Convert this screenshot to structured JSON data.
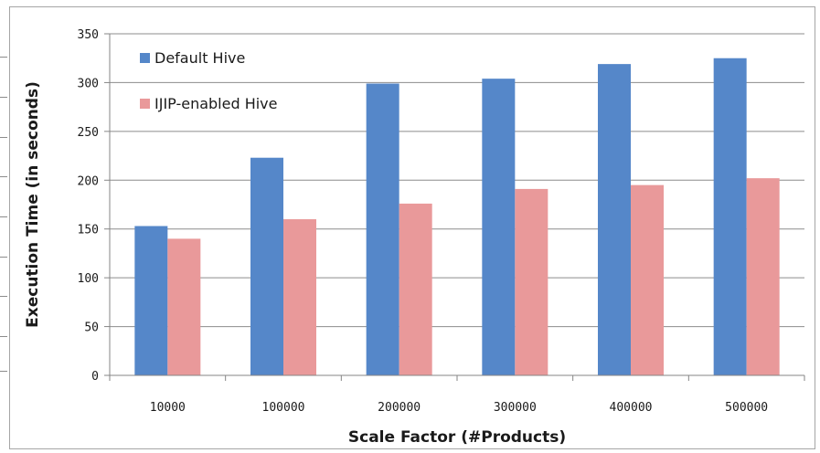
{
  "chart_data": {
    "type": "bar",
    "title": "",
    "xlabel": "Scale Factor (#Products)",
    "ylabel": "Execution Time  (in seconds)",
    "ylim": [
      0,
      350
    ],
    "yticks": [
      0,
      50,
      100,
      150,
      200,
      250,
      300,
      350
    ],
    "grid": "horizontal",
    "legend_position": "top-left",
    "categories": [
      "10000",
      "100000",
      "200000",
      "300000",
      "400000",
      "500000"
    ],
    "series": [
      {
        "name": "Default Hive",
        "color": "#5587c9",
        "values": [
          153,
          223,
          299,
          304,
          319,
          325
        ]
      },
      {
        "name": "IJIP-enabled Hive",
        "color": "#e9999a",
        "values": [
          140,
          160,
          176,
          191,
          195,
          202
        ]
      }
    ]
  }
}
